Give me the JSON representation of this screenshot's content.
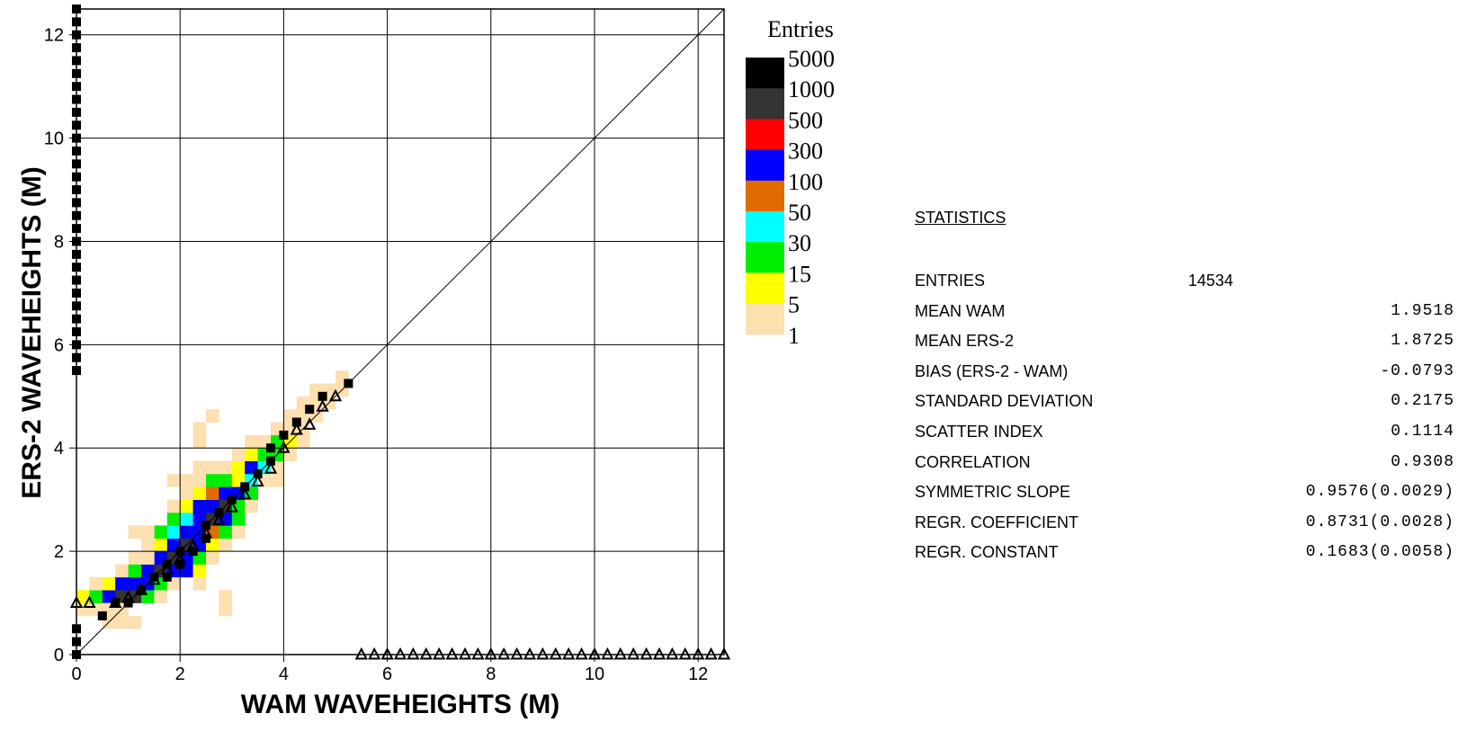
{
  "chart_data": {
    "type": "heatmap",
    "xlabel": "WAM  WAVEHEIGHTS (M)",
    "ylabel": "ERS-2  WAVEHEIGHTS (M)",
    "xlim": [
      0,
      12.5
    ],
    "ylim": [
      0,
      12.5
    ],
    "x_ticks": [
      0,
      2,
      4,
      6,
      8,
      10,
      12
    ],
    "y_ticks": [
      0,
      2,
      4,
      6,
      8,
      10,
      12
    ],
    "grid": true,
    "diagonal": true,
    "cell_size": 0.25,
    "legend": {
      "title": "Entries",
      "labels": [
        "5000",
        "1000",
        "500",
        "300",
        "100",
        "50",
        "30",
        "15",
        "5",
        "1"
      ],
      "colors": [
        "#000000",
        "#333333",
        "#ff0000",
        "#0000ff",
        "#e06c00",
        "#00ffff",
        "#00ee00",
        "#ffff00",
        "#fde0b0"
      ]
    },
    "cells": [
      [
        0.0,
        0.75,
        8
      ],
      [
        0.25,
        0.75,
        8
      ],
      [
        0.5,
        0.5,
        8
      ],
      [
        0.75,
        0.5,
        8
      ],
      [
        1.0,
        0.5,
        8
      ],
      [
        0.0,
        1.0,
        7
      ],
      [
        0.25,
        1.0,
        6
      ],
      [
        0.5,
        1.0,
        3
      ],
      [
        0.75,
        1.0,
        1
      ],
      [
        1.0,
        1.0,
        1
      ],
      [
        1.25,
        1.0,
        6
      ],
      [
        1.5,
        1.0,
        8
      ],
      [
        0.25,
        1.25,
        8
      ],
      [
        0.5,
        1.25,
        7
      ],
      [
        0.75,
        1.25,
        3
      ],
      [
        1.0,
        1.25,
        3
      ],
      [
        1.25,
        1.25,
        3
      ],
      [
        1.5,
        1.25,
        6
      ],
      [
        1.75,
        1.25,
        8
      ],
      [
        0.75,
        1.5,
        8
      ],
      [
        1.0,
        1.5,
        6
      ],
      [
        1.25,
        1.5,
        3
      ],
      [
        1.5,
        1.5,
        1
      ],
      [
        1.75,
        1.5,
        3
      ],
      [
        2.0,
        1.5,
        3
      ],
      [
        2.25,
        1.5,
        7
      ],
      [
        1.0,
        1.75,
        8
      ],
      [
        1.25,
        1.75,
        7
      ],
      [
        1.5,
        1.75,
        3
      ],
      [
        1.75,
        1.75,
        1
      ],
      [
        2.0,
        1.75,
        3
      ],
      [
        2.25,
        1.75,
        6
      ],
      [
        2.5,
        1.75,
        8
      ],
      [
        1.25,
        2.0,
        8
      ],
      [
        1.5,
        2.0,
        7
      ],
      [
        1.75,
        2.0,
        3
      ],
      [
        2.0,
        2.0,
        1
      ],
      [
        2.25,
        2.0,
        3
      ],
      [
        2.5,
        2.0,
        7
      ],
      [
        2.75,
        2.0,
        8
      ],
      [
        1.25,
        2.25,
        8
      ],
      [
        1.5,
        2.25,
        6
      ],
      [
        1.75,
        2.25,
        5
      ],
      [
        2.0,
        2.25,
        3
      ],
      [
        2.25,
        2.25,
        3
      ],
      [
        2.5,
        2.25,
        4
      ],
      [
        2.75,
        2.25,
        6
      ],
      [
        3.0,
        2.25,
        8
      ],
      [
        1.75,
        2.5,
        6
      ],
      [
        2.0,
        2.5,
        5
      ],
      [
        2.25,
        2.5,
        3
      ],
      [
        2.5,
        2.5,
        1
      ],
      [
        2.75,
        2.5,
        3
      ],
      [
        3.0,
        2.5,
        6
      ],
      [
        1.75,
        2.75,
        8
      ],
      [
        2.0,
        2.75,
        7
      ],
      [
        2.25,
        2.75,
        3
      ],
      [
        2.5,
        2.75,
        3
      ],
      [
        2.75,
        2.75,
        1
      ],
      [
        3.0,
        2.75,
        6
      ],
      [
        3.25,
        2.75,
        8
      ],
      [
        2.0,
        3.0,
        8
      ],
      [
        2.25,
        3.0,
        7
      ],
      [
        2.5,
        3.0,
        4
      ],
      [
        2.75,
        3.0,
        3
      ],
      [
        3.0,
        3.0,
        3
      ],
      [
        3.25,
        3.0,
        6
      ],
      [
        2.25,
        3.25,
        8
      ],
      [
        2.5,
        3.25,
        6
      ],
      [
        2.75,
        3.25,
        6
      ],
      [
        3.0,
        3.25,
        7
      ],
      [
        3.25,
        3.25,
        5
      ],
      [
        3.5,
        3.25,
        8
      ],
      [
        2.75,
        3.5,
        8
      ],
      [
        3.0,
        3.5,
        7
      ],
      [
        3.25,
        3.5,
        3
      ],
      [
        3.5,
        3.5,
        5
      ],
      [
        3.75,
        3.5,
        8
      ],
      [
        3.0,
        3.75,
        8
      ],
      [
        3.25,
        3.75,
        7
      ],
      [
        3.5,
        3.75,
        6
      ],
      [
        3.75,
        3.75,
        6
      ],
      [
        4.0,
        3.75,
        8
      ],
      [
        3.25,
        4.0,
        8
      ],
      [
        3.5,
        4.0,
        8
      ],
      [
        3.75,
        4.0,
        6
      ],
      [
        4.0,
        4.0,
        7
      ],
      [
        4.25,
        4.0,
        8
      ],
      [
        3.75,
        4.25,
        8
      ],
      [
        4.0,
        4.25,
        8
      ],
      [
        4.25,
        4.25,
        8
      ],
      [
        4.0,
        4.5,
        8
      ],
      [
        4.25,
        4.5,
        8
      ],
      [
        4.5,
        4.5,
        8
      ],
      [
        4.25,
        4.75,
        8
      ],
      [
        4.5,
        4.75,
        8
      ],
      [
        4.75,
        4.75,
        8
      ],
      [
        4.5,
        5.0,
        8
      ],
      [
        4.75,
        5.0,
        8
      ],
      [
        5.0,
        5.0,
        8
      ],
      [
        5.0,
        5.25,
        8
      ],
      [
        2.5,
        4.5,
        8
      ],
      [
        2.25,
        4.25,
        8
      ],
      [
        2.25,
        4.0,
        8
      ],
      [
        1.25,
        1.75,
        8
      ],
      [
        1.0,
        2.25,
        8
      ],
      [
        1.25,
        2.25,
        8
      ],
      [
        2.75,
        1.0,
        8
      ],
      [
        2.75,
        0.75,
        8
      ],
      [
        2.25,
        1.25,
        8
      ],
      [
        0.5,
        0.75,
        8
      ],
      [
        0.75,
        0.75,
        8
      ],
      [
        1.75,
        3.25,
        8
      ],
      [
        2.0,
        3.25,
        8
      ],
      [
        2.25,
        3.5,
        8
      ],
      [
        2.5,
        3.5,
        8
      ],
      [
        3.75,
        3.25,
        8
      ]
    ],
    "ers2_means": [
      [
        0.5,
        0.75
      ],
      [
        0.75,
        1.0
      ],
      [
        1.0,
        1.0
      ],
      [
        1.25,
        1.25
      ],
      [
        1.5,
        1.5
      ],
      [
        1.75,
        1.5
      ],
      [
        1.75,
        1.75
      ],
      [
        2.0,
        2.0
      ],
      [
        2.0,
        1.75
      ],
      [
        2.25,
        2.0
      ],
      [
        2.5,
        2.25
      ],
      [
        2.5,
        2.5
      ],
      [
        2.75,
        2.75
      ],
      [
        3.0,
        3.0
      ],
      [
        3.25,
        3.25
      ],
      [
        3.5,
        3.5
      ],
      [
        3.75,
        3.75
      ],
      [
        3.75,
        4.0
      ],
      [
        4.0,
        4.25
      ],
      [
        4.25,
        4.5
      ],
      [
        4.5,
        4.75
      ],
      [
        4.75,
        5.0
      ],
      [
        5.25,
        5.25
      ]
    ],
    "ers2_means_left_edge": [
      0.0,
      0.25,
      0.5,
      5.5,
      5.75,
      6.0,
      6.25,
      6.5,
      6.75,
      7.0,
      7.25,
      7.5,
      7.75,
      8.0,
      8.25,
      8.5,
      8.75,
      9.0,
      9.25,
      9.5,
      9.75,
      10.0,
      10.25,
      10.5,
      10.75,
      11.0,
      11.25,
      11.5,
      11.75,
      12.0,
      12.25,
      12.5
    ],
    "wam_means": [
      [
        0.0,
        1.0
      ],
      [
        0.25,
        1.0
      ],
      [
        0.75,
        1.0
      ],
      [
        1.0,
        1.1
      ],
      [
        1.25,
        1.25
      ],
      [
        1.5,
        1.45
      ],
      [
        1.75,
        1.65
      ],
      [
        2.0,
        1.85
      ],
      [
        2.25,
        2.1
      ],
      [
        2.5,
        2.35
      ],
      [
        2.75,
        2.6
      ],
      [
        3.0,
        2.85
      ],
      [
        3.25,
        3.1
      ],
      [
        3.5,
        3.35
      ],
      [
        3.75,
        3.6
      ],
      [
        4.0,
        4.0
      ],
      [
        4.25,
        4.35
      ],
      [
        4.5,
        4.45
      ],
      [
        4.75,
        4.8
      ],
      [
        5.0,
        5.0
      ]
    ],
    "wam_means_bottom_edge": [
      5.5,
      5.75,
      6.0,
      6.25,
      6.5,
      6.75,
      7.0,
      7.25,
      7.5,
      7.75,
      8.0,
      8.25,
      8.5,
      8.75,
      9.0,
      9.25,
      9.5,
      9.75,
      10.0,
      10.25,
      10.5,
      10.75,
      11.0,
      11.25,
      11.5,
      11.75,
      12.0,
      12.25,
      12.5
    ]
  },
  "statistics": {
    "title": "STATISTICS",
    "rows": [
      {
        "label": "ENTRIES",
        "value": "14534"
      },
      {
        "label": "MEAN WAM",
        "value": "1.9518"
      },
      {
        "label": "MEAN ERS-2",
        "value": "1.8725"
      },
      {
        "label": "BIAS (ERS-2 - WAM)",
        "value": "-0.0793"
      },
      {
        "label": "STANDARD DEVIATION",
        "value": "0.2175"
      },
      {
        "label": "SCATTER INDEX",
        "value": "0.1114"
      },
      {
        "label": "CORRELATION",
        "value": "0.9308"
      },
      {
        "label": "SYMMETRIC SLOPE",
        "value": "0.9576(0.0029)"
      },
      {
        "label": "REGR. COEFFICIENT",
        "value": "0.8731(0.0028)"
      },
      {
        "label": "REGR. CONSTANT",
        "value": "0.1683(0.0058)"
      }
    ]
  }
}
